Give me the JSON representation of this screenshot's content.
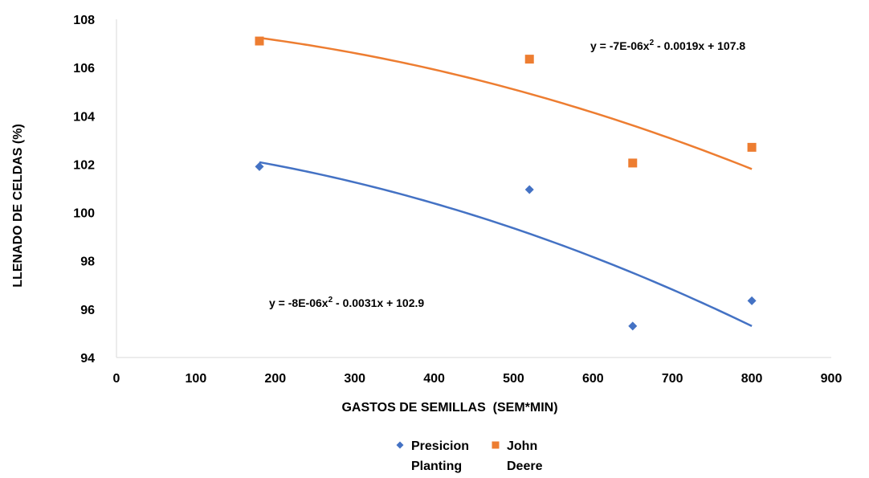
{
  "chart_data": {
    "type": "scatter",
    "title": "",
    "xlabel": "GASTOS DE SEMILLAS  (SEM*MIN)",
    "ylabel": "LLENADO DE CELDAS (%)",
    "xlim": [
      0,
      900
    ],
    "ylim": [
      94,
      108
    ],
    "xticks": [
      0,
      100,
      200,
      300,
      400,
      500,
      600,
      700,
      800,
      900
    ],
    "yticks": [
      94,
      96,
      98,
      100,
      102,
      104,
      106,
      108
    ],
    "grid": false,
    "legend_position": "bottom",
    "series": [
      {
        "name": "Presicion Planting",
        "marker": "diamond",
        "color": "#4472C4",
        "x": [
          180,
          520,
          650,
          800
        ],
        "y": [
          101.9,
          100.95,
          95.3,
          96.35
        ],
        "trendline": {
          "type": "polynomial",
          "coefficients": [
            -8e-06,
            -0.0031,
            102.9
          ],
          "x_range": [
            180,
            800
          ],
          "equation_label": "y = -8E-06x² - 0.0031x + 102.9"
        }
      },
      {
        "name": "John Deere",
        "marker": "square",
        "color": "#ED7D31",
        "x": [
          180,
          520,
          650,
          800
        ],
        "y": [
          107.1,
          106.35,
          102.05,
          102.7
        ],
        "trendline": {
          "type": "polynomial",
          "coefficients": [
            -7e-06,
            -0.0019,
            107.8
          ],
          "x_range": [
            180,
            800
          ],
          "equation_label": "y = -7E-06x² - 0.0019x + 107.8"
        }
      }
    ],
    "legend_entries": [
      {
        "line1": "Presicion",
        "line2": "Planting"
      },
      {
        "line1": "John",
        "line2": "Deere"
      }
    ]
  }
}
